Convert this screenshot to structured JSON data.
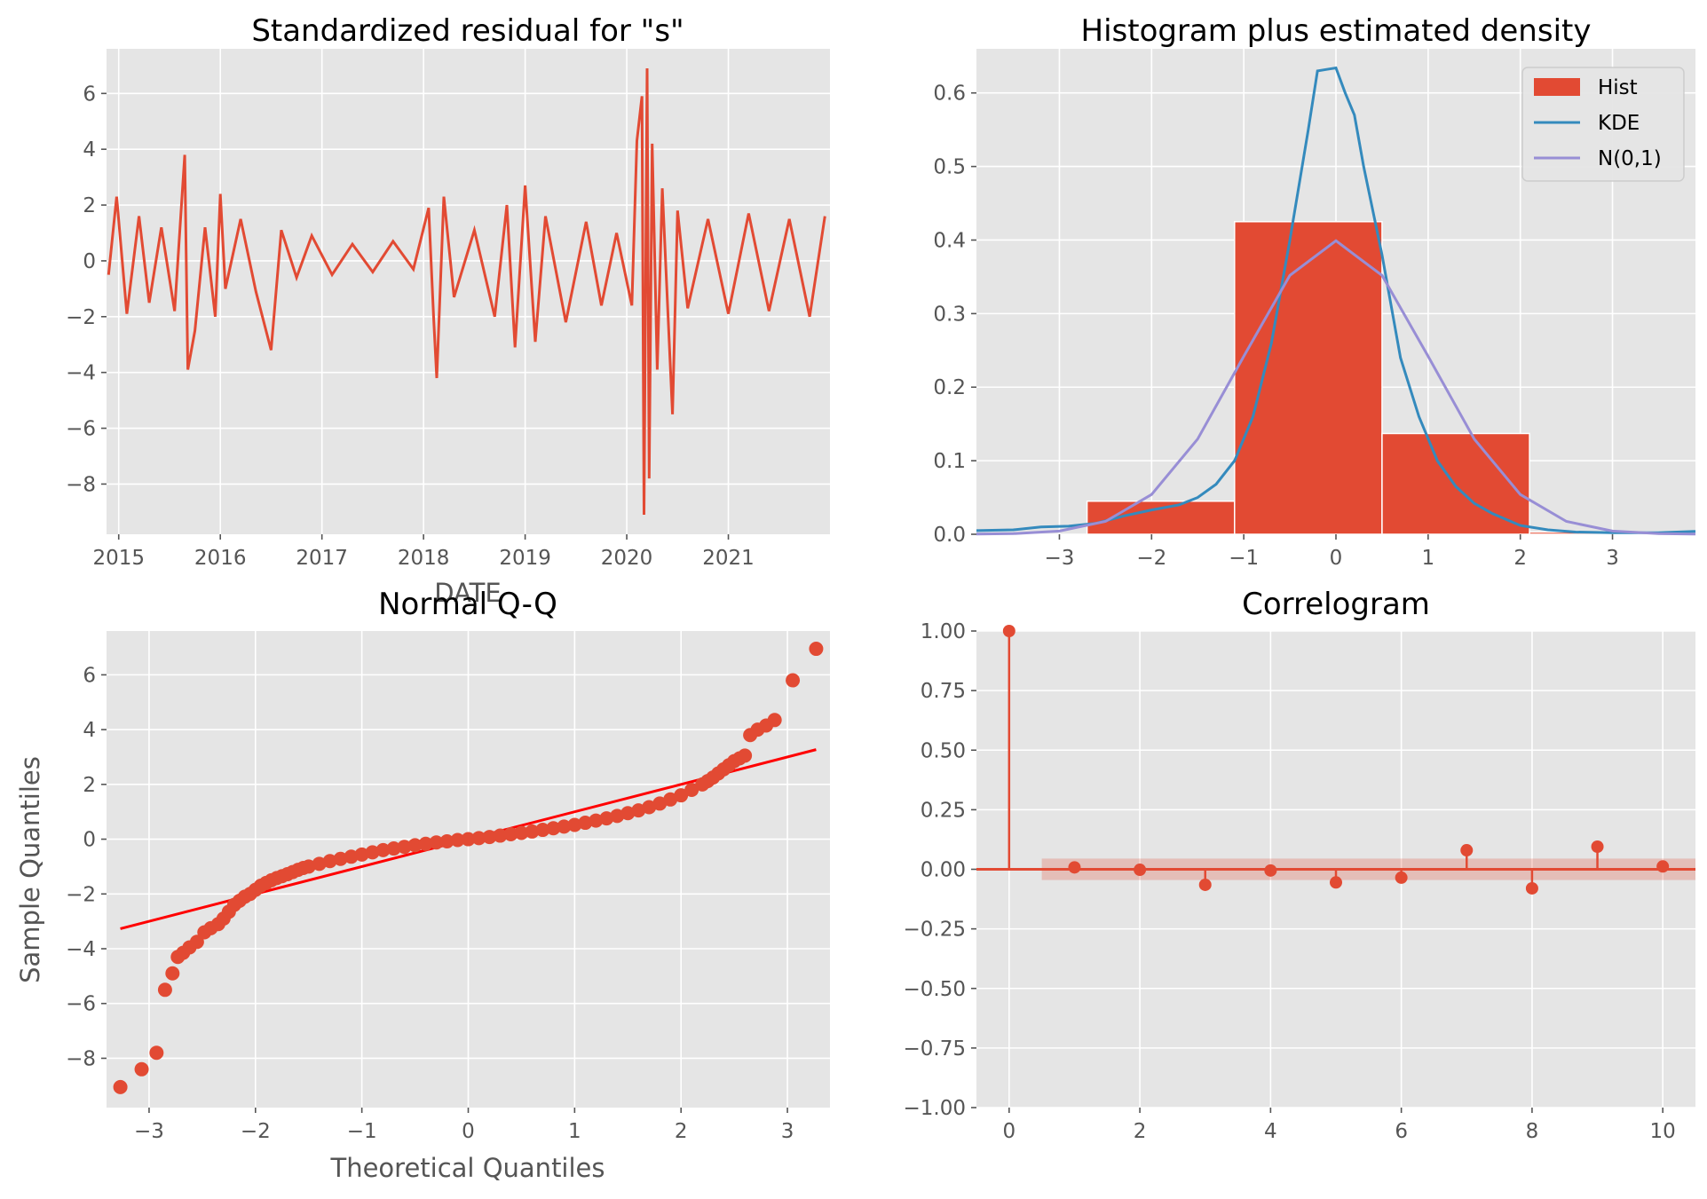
{
  "colors": {
    "red": "#E24A33",
    "blue": "#348ABD",
    "purple": "#988ED5",
    "qq_line": "#FF0000",
    "panel_bg": "#E5E5E5",
    "grid": "#FFFFFF"
  },
  "chart_data": [
    {
      "type": "line",
      "title": "Standardized residual for \"s\"",
      "xlabel": "DATE",
      "ylabel": "",
      "xlim": [
        2014.88,
        2022.0
      ],
      "ylim": [
        -9.8,
        7.6
      ],
      "grid": true,
      "x_ticks": [
        2015,
        2016,
        2017,
        2018,
        2019,
        2020,
        2021
      ],
      "x_tick_labels": [
        "2015",
        "2016",
        "2017",
        "2018",
        "2019",
        "2020",
        "2021"
      ],
      "y_ticks": [
        -8,
        -6,
        -4,
        -2,
        0,
        2,
        4,
        6
      ],
      "y_tick_labels": [
        "−8",
        "−6",
        "−4",
        "−2",
        "0",
        "2",
        "4",
        "6"
      ],
      "series": [
        {
          "color": "#E24A33",
          "x": [
            2014.9,
            2014.98,
            2015.08,
            2015.2,
            2015.3,
            2015.42,
            2015.55,
            2015.65,
            2015.68,
            2015.75,
            2015.85,
            2015.95,
            2016.0,
            2016.05,
            2016.2,
            2016.35,
            2016.5,
            2016.6,
            2016.75,
            2016.9,
            2017.1,
            2017.3,
            2017.5,
            2017.7,
            2017.9,
            2018.05,
            2018.1,
            2018.13,
            2018.2,
            2018.3,
            2018.5,
            2018.7,
            2018.82,
            2018.9,
            2019.0,
            2019.1,
            2019.2,
            2019.4,
            2019.6,
            2019.75,
            2019.9,
            2020.05,
            2020.1,
            2020.15,
            2020.17,
            2020.2,
            2020.22,
            2020.25,
            2020.3,
            2020.35,
            2020.45,
            2020.5,
            2020.6,
            2020.8,
            2021.0,
            2021.2,
            2021.4,
            2021.6,
            2021.8,
            2021.95
          ],
          "y": [
            -0.5,
            2.3,
            -1.9,
            1.6,
            -1.5,
            1.2,
            -1.8,
            3.8,
            -3.9,
            -2.5,
            1.2,
            -2.0,
            2.4,
            -1.0,
            1.5,
            -1.1,
            -3.2,
            1.1,
            -0.6,
            0.9,
            -0.5,
            0.6,
            -0.4,
            0.7,
            -0.3,
            1.9,
            -2.1,
            -4.2,
            2.3,
            -1.3,
            1.1,
            -2.0,
            2.0,
            -3.1,
            2.7,
            -2.9,
            1.6,
            -2.2,
            1.4,
            -1.6,
            1.0,
            -1.6,
            4.3,
            5.9,
            -9.1,
            6.9,
            -7.8,
            4.2,
            -3.9,
            2.6,
            -5.5,
            1.8,
            -1.7,
            1.5,
            -1.9,
            1.7,
            -1.8,
            1.5,
            -2.0,
            1.6
          ]
        }
      ]
    },
    {
      "type": "bar",
      "title": "Histogram plus estimated density",
      "xlim": [
        -3.9,
        3.9
      ],
      "ylim": [
        0,
        0.66
      ],
      "grid": true,
      "legend_position": "top-right",
      "x_ticks": [
        -3,
        -2,
        -1,
        0,
        1,
        2,
        3
      ],
      "x_tick_labels": [
        "−3",
        "−2",
        "−1",
        "0",
        "1",
        "2",
        "3"
      ],
      "y_ticks": [
        0.0,
        0.1,
        0.2,
        0.3,
        0.4,
        0.5,
        0.6
      ],
      "y_tick_labels": [
        "0.0",
        "0.1",
        "0.2",
        "0.3",
        "0.4",
        "0.5",
        "0.6"
      ],
      "bins": [
        {
          "x0": -2.7,
          "x1": -1.1,
          "value": 0.045
        },
        {
          "x0": -1.1,
          "x1": 0.5,
          "value": 0.425
        },
        {
          "x0": 0.5,
          "x1": 2.1,
          "value": 0.137
        },
        {
          "x0": 2.1,
          "x1": 3.7,
          "value": 0.003
        }
      ],
      "series": [
        {
          "name": "KDE",
          "color": "#348ABD",
          "x": [
            -3.9,
            -3.5,
            -3.2,
            -2.9,
            -2.6,
            -2.3,
            -2.0,
            -1.7,
            -1.5,
            -1.3,
            -1.1,
            -0.9,
            -0.7,
            -0.5,
            -0.3,
            -0.2,
            -0.1,
            0.0,
            0.1,
            0.2,
            0.3,
            0.5,
            0.7,
            0.9,
            1.1,
            1.3,
            1.5,
            1.7,
            2.0,
            2.3,
            2.6,
            3.0,
            3.5,
            3.9
          ],
          "y": [
            0.005,
            0.006,
            0.01,
            0.011,
            0.015,
            0.025,
            0.033,
            0.04,
            0.05,
            0.068,
            0.1,
            0.16,
            0.26,
            0.4,
            0.55,
            0.63,
            0.632,
            0.634,
            0.6,
            0.57,
            0.5,
            0.38,
            0.24,
            0.16,
            0.1,
            0.065,
            0.042,
            0.028,
            0.012,
            0.006,
            0.003,
            0.002,
            0.002,
            0.004
          ]
        },
        {
          "name": "N(0,1)",
          "color": "#988ED5",
          "x": [
            -3.9,
            -3.5,
            -3.0,
            -2.5,
            -2.0,
            -1.5,
            -1.0,
            -0.5,
            0.0,
            0.5,
            1.0,
            1.5,
            2.0,
            2.5,
            3.0,
            3.5,
            3.9
          ],
          "y": [
            0.0002,
            0.0009,
            0.0044,
            0.0175,
            0.054,
            0.1295,
            0.242,
            0.352,
            0.399,
            0.352,
            0.242,
            0.1295,
            0.054,
            0.0175,
            0.0044,
            0.0009,
            0.0002
          ]
        }
      ],
      "legend": [
        "Hist",
        "KDE",
        "N(0,1)"
      ]
    },
    {
      "type": "scatter",
      "title": "Normal Q-Q",
      "xlabel": "Theoretical Quantiles",
      "ylabel": "Sample Quantiles",
      "xlim": [
        -3.4,
        3.4
      ],
      "ylim": [
        -9.8,
        7.6
      ],
      "grid": true,
      "x_ticks": [
        -3,
        -2,
        -1,
        0,
        1,
        2,
        3
      ],
      "x_tick_labels": [
        "−3",
        "−2",
        "−1",
        "0",
        "1",
        "2",
        "3"
      ],
      "y_ticks": [
        -8,
        -6,
        -4,
        -2,
        0,
        2,
        4,
        6
      ],
      "y_tick_labels": [
        "−8",
        "−6",
        "−4",
        "−2",
        "0",
        "2",
        "4",
        "6"
      ],
      "points": {
        "x": [
          -3.27,
          -3.07,
          -2.93,
          -2.85,
          -2.78,
          -2.73,
          -2.68,
          -2.62,
          -2.55,
          -2.48,
          -2.42,
          -2.35,
          -2.3,
          -2.25,
          -2.2,
          -2.15,
          -2.1,
          -2.05,
          -2.0,
          -1.95,
          -1.9,
          -1.85,
          -1.8,
          -1.75,
          -1.7,
          -1.65,
          -1.6,
          -1.55,
          -1.5,
          -1.4,
          -1.3,
          -1.2,
          -1.1,
          -1.0,
          -0.9,
          -0.8,
          -0.7,
          -0.6,
          -0.5,
          -0.4,
          -0.3,
          -0.2,
          -0.1,
          0.0,
          0.1,
          0.2,
          0.3,
          0.4,
          0.5,
          0.6,
          0.7,
          0.8,
          0.9,
          1.0,
          1.1,
          1.2,
          1.3,
          1.4,
          1.5,
          1.6,
          1.7,
          1.8,
          1.9,
          2.0,
          2.1,
          2.2,
          2.25,
          2.3,
          2.35,
          2.4,
          2.45,
          2.5,
          2.55,
          2.6,
          2.65,
          2.72,
          2.8,
          2.88,
          3.05,
          3.27
        ],
        "y": [
          -9.05,
          -8.4,
          -7.8,
          -5.5,
          -4.9,
          -4.3,
          -4.15,
          -3.95,
          -3.75,
          -3.4,
          -3.25,
          -3.1,
          -2.9,
          -2.65,
          -2.4,
          -2.25,
          -2.1,
          -2.0,
          -1.85,
          -1.7,
          -1.6,
          -1.5,
          -1.42,
          -1.35,
          -1.28,
          -1.2,
          -1.12,
          -1.05,
          -1.0,
          -0.9,
          -0.8,
          -0.72,
          -0.64,
          -0.56,
          -0.48,
          -0.4,
          -0.34,
          -0.28,
          -0.22,
          -0.17,
          -0.12,
          -0.08,
          -0.03,
          0.0,
          0.04,
          0.08,
          0.13,
          0.18,
          0.23,
          0.28,
          0.34,
          0.4,
          0.46,
          0.52,
          0.6,
          0.68,
          0.76,
          0.85,
          0.95,
          1.05,
          1.17,
          1.3,
          1.45,
          1.6,
          1.8,
          2.0,
          2.12,
          2.25,
          2.4,
          2.55,
          2.7,
          2.85,
          2.95,
          3.05,
          3.8,
          4.0,
          4.15,
          4.35,
          5.8,
          6.95
        ]
      },
      "reference_line": {
        "x": [
          -3.27,
          3.27
        ],
        "y": [
          -3.27,
          3.27
        ],
        "color": "#FF0000"
      }
    },
    {
      "type": "bar",
      "title": "Correlogram",
      "xlim": [
        -0.5,
        10.5
      ],
      "ylim": [
        -1.0,
        1.0
      ],
      "grid": true,
      "x_ticks": [
        0,
        2,
        4,
        6,
        8,
        10
      ],
      "x_tick_labels": [
        "0",
        "2",
        "4",
        "6",
        "8",
        "10"
      ],
      "y_ticks": [
        -1.0,
        -0.75,
        -0.5,
        -0.25,
        0.0,
        0.25,
        0.5,
        0.75,
        1.0
      ],
      "y_tick_labels": [
        "−1.00",
        "−0.75",
        "−0.50",
        "−0.25",
        "0.00",
        "0.25",
        "0.50",
        "0.75",
        "1.00"
      ],
      "lags": [
        0,
        1,
        2,
        3,
        4,
        5,
        6,
        7,
        8,
        9,
        10
      ],
      "values": [
        1.0,
        0.008,
        -0.002,
        -0.065,
        -0.005,
        -0.055,
        -0.035,
        0.08,
        -0.08,
        0.095,
        0.012
      ],
      "confidence_band": [
        -0.045,
        0.045
      ],
      "band_from_lag": 0.5
    }
  ]
}
